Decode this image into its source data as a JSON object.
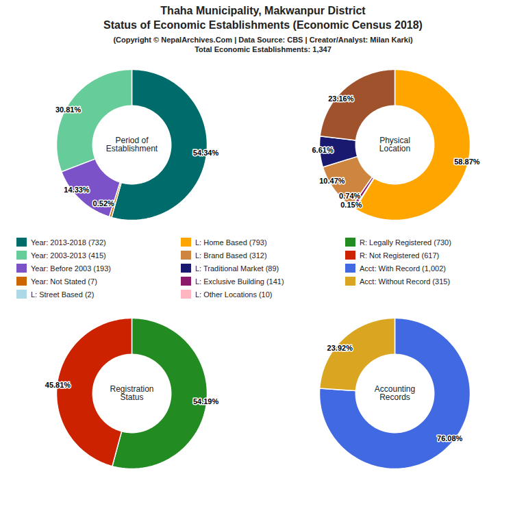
{
  "title": "Thaha Municipality, Makwanpur District\nStatus of Economic Establishments (Economic Census 2018)",
  "subtitle": "(Copyright © NepalArchives.Com | Data Source: CBS | Creator/Analyst: Milan Karki)\nTotal Economic Establishments: 1,347",
  "chart_data": [
    {
      "type": "donut",
      "title": "Period of\nEstablishment",
      "values": [
        54.34,
        0.52,
        14.33,
        30.81
      ],
      "colors": [
        "#006B6B",
        "#CC6600",
        "#7B52C8",
        "#66CC99"
      ],
      "value_labels": [
        "54.34%",
        "0.52%",
        "14.33%",
        "30.81%"
      ],
      "data_labels": true
    },
    {
      "type": "donut",
      "title": "Physical\nLocation",
      "values": [
        58.87,
        0.15,
        0.74,
        10.47,
        6.61,
        23.16
      ],
      "colors": [
        "#FFA500",
        "#ADD8E6",
        "#8B1A6B",
        "#CD853F",
        "#191970",
        "#A0522D"
      ],
      "value_labels": [
        "58.87%",
        "0.15%",
        "0.74%",
        "10.47%",
        "6.61%",
        "23.16%"
      ],
      "data_labels": true
    },
    {
      "type": "donut",
      "title": "Registration\nStatus",
      "values": [
        54.19,
        45.81
      ],
      "colors": [
        "#228B22",
        "#CC2200"
      ],
      "value_labels": [
        "54.19%",
        "45.81%"
      ],
      "data_labels": true
    },
    {
      "type": "donut",
      "title": "Accounting\nRecords",
      "values": [
        76.08,
        23.92
      ],
      "colors": [
        "#4169E1",
        "#DAA520"
      ],
      "value_labels": [
        "76.08%",
        "23.92%"
      ],
      "data_labels": true
    }
  ],
  "series": [
    {
      "name": "Year: 2013-2018 (732)",
      "color": "#006B6B"
    },
    {
      "name": "Year: 2003-2013 (415)",
      "color": "#66CC99"
    },
    {
      "name": "Year: Before 2003 (193)",
      "color": "#7B52C8"
    },
    {
      "name": "Year: Not Stated (7)",
      "color": "#CC6600"
    },
    {
      "name": "L: Street Based (2)",
      "color": "#ADD8E6"
    },
    {
      "name": "L: Home Based (793)",
      "color": "#FFA500"
    },
    {
      "name": "L: Brand Based (312)",
      "color": "#CD853F"
    },
    {
      "name": "L: Traditional Market (89)",
      "color": "#191970"
    },
    {
      "name": "L: Exclusive Building (141)",
      "color": "#8B1A6B"
    },
    {
      "name": "L: Other Locations (10)",
      "color": "#FFB6C1"
    },
    {
      "name": "R: Legally Registered (730)",
      "color": "#228B22"
    },
    {
      "name": "R: Not Registered (617)",
      "color": "#CC2200"
    },
    {
      "name": "Acct: With Record (1,002)",
      "color": "#4169E1"
    },
    {
      "name": "Acct: Without Record (315)",
      "color": "#DAA520"
    }
  ]
}
